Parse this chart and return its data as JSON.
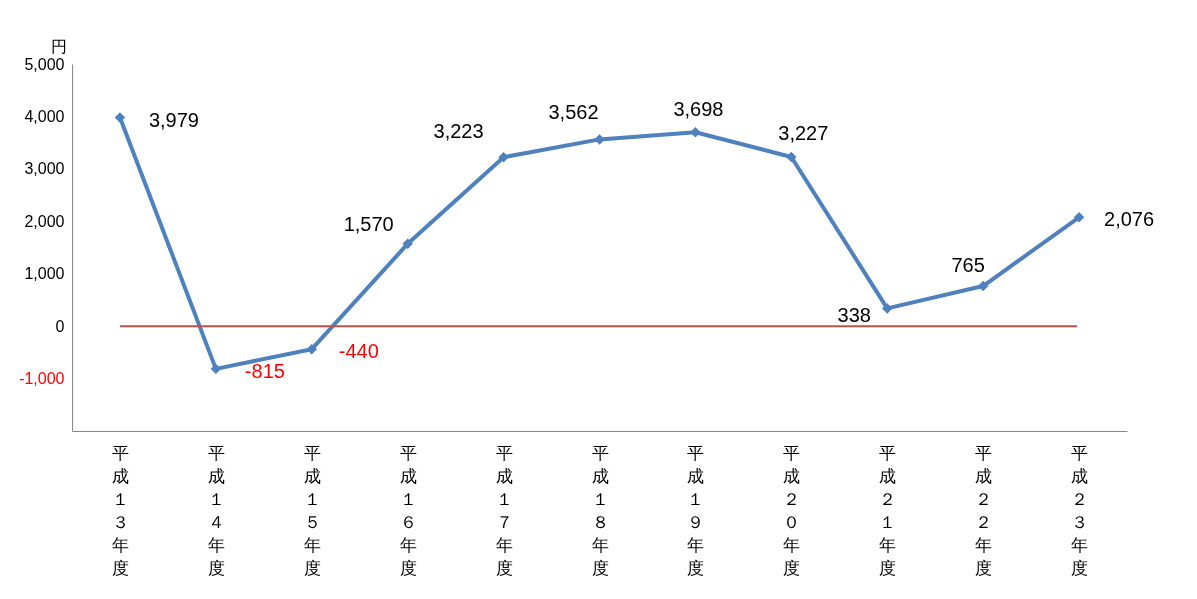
{
  "chart_data": {
    "type": "line",
    "ylabel": "円",
    "categories": [
      "平成１３年度",
      "平成１４年度",
      "平成１５年度",
      "平成１６年度",
      "平成１７年度",
      "平成１８年度",
      "平成１９年度",
      "平成２０年度",
      "平成２１年度",
      "平成２２年度",
      "平成２３年度"
    ],
    "series": [
      {
        "color": "#4f81bd",
        "values": [
          3979,
          -815,
          -440,
          1570,
          3223,
          3562,
          3698,
          3227,
          338,
          765,
          2076
        ],
        "value_labels": [
          "3,979",
          "-815",
          "-440",
          "1,570",
          "3,223",
          "3,562",
          "3,698",
          "3,227",
          "338",
          "765",
          "2,076"
        ]
      }
    ],
    "ylim": [
      -2000,
      5000
    ],
    "yticks": [
      {
        "value": -1000,
        "label": "-1,000"
      },
      0,
      {
        "value": 1000,
        "label": "1,000"
      },
      {
        "value": 2000,
        "label": "2,000"
      },
      {
        "value": 3000,
        "label": "3,000"
      },
      {
        "value": 4000,
        "label": "4,000"
      },
      {
        "value": 5000,
        "label": "5,000"
      }
    ],
    "ref_lines": [
      {
        "axis": "y",
        "value": 0,
        "color": "#c0504d"
      }
    ],
    "marker": "diamond",
    "line_style": "solid",
    "grid": false
  }
}
